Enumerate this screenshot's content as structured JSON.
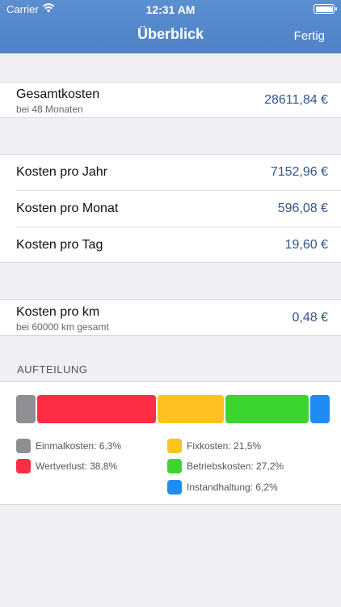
{
  "status_bar": {
    "carrier": "Carrier",
    "time": "12:31 AM"
  },
  "nav": {
    "title": "Überblick",
    "done_label": "Fertig"
  },
  "total": {
    "label": "Gesamtkosten",
    "sublabel": "bei 48 Monaten",
    "value": "28611,84 €"
  },
  "periods": [
    {
      "label": "Kosten pro Jahr",
      "value": "7152,96 €"
    },
    {
      "label": "Kosten pro Monat",
      "value": "596,08 €"
    },
    {
      "label": "Kosten pro Tag",
      "value": "19,60 €"
    }
  ],
  "per_km": {
    "label": "Kosten pro km",
    "sublabel": "bei 60000 km gesamt",
    "value": "0,48 €"
  },
  "breakdown": {
    "header": "AUFTEILUNG",
    "segments": [
      {
        "name": "Einmalkosten",
        "percent": 6.3,
        "color": "#8e8e93"
      },
      {
        "name": "Wertverlust",
        "percent": 38.8,
        "color": "#ff2d44"
      },
      {
        "name": "Fixkosten",
        "percent": 21.5,
        "color": "#ffc21e"
      },
      {
        "name": "Betriebskosten",
        "percent": 27.2,
        "color": "#3cd42f"
      },
      {
        "name": "Instandhaltung",
        "percent": 6.2,
        "color": "#1e8cf5"
      }
    ],
    "legend": [
      {
        "text": "Einmalkosten: 6,3%",
        "color": "#8e8e93"
      },
      {
        "text": "Fixkosten: 21,5%",
        "color": "#ffc21e"
      },
      {
        "text": "Wertverlust: 38,8%",
        "color": "#ff2d44"
      },
      {
        "text": "Betriebskosten: 27,2%",
        "color": "#3cd42f"
      },
      {
        "text": "Instandhaltung: 6,2%",
        "color": "#1e8cf5"
      }
    ]
  }
}
